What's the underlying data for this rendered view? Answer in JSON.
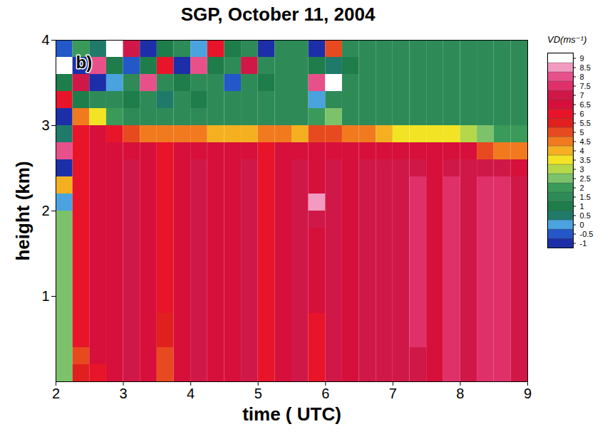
{
  "chart_data": {
    "type": "heatmap",
    "title": "SGP, October 11, 2004",
    "panel": "b)",
    "x_label": "time ( UTC)",
    "y_label": "height (km)",
    "xlim": [
      2,
      9
    ],
    "xticks": [
      2,
      3,
      4,
      5,
      6,
      7,
      8,
      9
    ],
    "ylim": [
      0,
      4
    ],
    "yticks": [
      1,
      2,
      3,
      4
    ],
    "x_bins": [
      2,
      2.25,
      2.5,
      2.75,
      3,
      3.25,
      3.5,
      3.75,
      4,
      4.25,
      4.5,
      4.75,
      5,
      5.25,
      5.5,
      5.75,
      6,
      6.25,
      6.5,
      6.75,
      7,
      7.25,
      7.5,
      7.75,
      8,
      8.25,
      8.5,
      8.75,
      9
    ],
    "y_bins": [
      0,
      0.2,
      0.4,
      0.6,
      0.8,
      1,
      1.2,
      1.4,
      1.6,
      1.8,
      2,
      2.2,
      2.4,
      2.6,
      2.8,
      3,
      3.2,
      3.4,
      3.6,
      3.8,
      4
    ],
    "values": [
      [
        2.5,
        2.5,
        2.5,
        2.5,
        2.5,
        2.5,
        2.5,
        2.5,
        2.5,
        2.5,
        0,
        4,
        -1,
        8,
        0.5,
        -1,
        6,
        1,
        9,
        -0.5
      ],
      [
        5.5,
        5,
        6,
        6,
        6,
        6,
        6,
        6,
        6,
        6,
        6,
        6,
        6,
        6,
        6,
        4.5,
        1,
        7,
        -1,
        2
      ],
      [
        6,
        6.5,
        6.5,
        6.5,
        6.5,
        6.5,
        6.5,
        6.5,
        6.5,
        6.5,
        6.5,
        6.5,
        6.5,
        6.5,
        6.5,
        3.5,
        1.5,
        -1,
        8,
        0.5
      ],
      [
        6.5,
        6.5,
        6.5,
        6.5,
        6.5,
        6.5,
        6.5,
        6.5,
        6.5,
        6.5,
        6.5,
        6.5,
        6.5,
        6.5,
        6,
        2,
        1.5,
        0,
        1,
        9
      ],
      [
        7,
        7,
        7,
        7,
        7,
        7,
        7,
        7,
        7,
        7,
        7,
        7,
        7,
        6.5,
        5,
        1.5,
        1,
        1.5,
        -0.5,
        7
      ],
      [
        6.5,
        6.5,
        6.5,
        6.5,
        6.5,
        6.5,
        6.5,
        6.5,
        6.5,
        6.5,
        6.5,
        6.5,
        6.5,
        6.5,
        4.5,
        1.5,
        1.5,
        8,
        1,
        -1
      ],
      [
        5,
        5,
        5.5,
        5.5,
        6,
        6,
        6,
        6,
        6,
        6,
        6,
        6,
        6,
        6,
        4.5,
        1.5,
        0.5,
        1.5,
        6,
        1
      ],
      [
        6.5,
        6.5,
        6.5,
        6.5,
        6.5,
        6.5,
        6.5,
        6.5,
        6.5,
        6.5,
        6.5,
        6.5,
        6.5,
        6.5,
        4.5,
        1.5,
        1.5,
        1,
        -1,
        1.5
      ],
      [
        7,
        7,
        7,
        7,
        7,
        7,
        7,
        7,
        7,
        7,
        7,
        7,
        7,
        6.5,
        4.5,
        1.5,
        1,
        1.5,
        8,
        0
      ],
      [
        6.5,
        6.5,
        6.5,
        6.5,
        6.5,
        6.5,
        6.5,
        6.5,
        6.5,
        6.5,
        6.5,
        6.5,
        6.5,
        6.5,
        4,
        1.5,
        1.5,
        1.5,
        1,
        6
      ],
      [
        6.5,
        6.5,
        6.5,
        6.5,
        6.5,
        6.5,
        6.5,
        6.5,
        6.5,
        6.5,
        6.5,
        6.5,
        6.5,
        6.5,
        4,
        1.5,
        1.5,
        -0.5,
        1.5,
        1
      ],
      [
        7,
        7,
        7,
        7,
        7,
        7,
        7,
        7,
        7,
        7,
        7,
        7,
        7,
        6.5,
        4,
        1.5,
        1.5,
        1.5,
        7,
        1.5
      ],
      [
        6,
        6,
        6,
        6,
        6,
        6,
        6,
        6,
        6,
        6,
        6,
        6,
        6,
        6,
        4.5,
        1.5,
        1.5,
        1,
        1.5,
        -1
      ],
      [
        6.5,
        6.5,
        6.5,
        6.5,
        6.5,
        6.5,
        6.5,
        6.5,
        6.5,
        6.5,
        6.5,
        6.5,
        6.5,
        6.5,
        4.5,
        1.5,
        1.5,
        1.5,
        1.5,
        1.5
      ],
      [
        7,
        7,
        7,
        7,
        7,
        7,
        7,
        7,
        7,
        7,
        7,
        7,
        7,
        6.5,
        4,
        1.5,
        1.5,
        1.5,
        1.5,
        1.5
      ],
      [
        6,
        6,
        6,
        6,
        6.5,
        6.5,
        6.5,
        6.5,
        6.5,
        7,
        8.5,
        6.5,
        6.5,
        6.5,
        5,
        2,
        0,
        8,
        1,
        -1
      ],
      [
        7,
        7,
        7,
        7,
        7,
        7,
        7,
        7,
        7,
        7,
        7,
        7,
        7,
        6.5,
        5,
        2.5,
        1.5,
        9,
        0.5,
        5
      ],
      [
        6.5,
        6.5,
        6.5,
        6.5,
        6.5,
        6.5,
        6.5,
        6.5,
        6.5,
        6.5,
        6.5,
        6.5,
        6.5,
        6.5,
        4.5,
        1.5,
        1.5,
        1.5,
        1,
        1.5
      ],
      [
        7,
        7,
        7,
        7,
        7,
        7,
        7,
        7,
        7,
        7,
        7,
        7,
        7,
        6.5,
        4.5,
        1.5,
        1.5,
        1.5,
        1.5,
        1.5
      ],
      [
        7,
        7,
        7,
        7,
        7,
        7,
        7,
        7,
        7,
        7,
        7,
        7,
        7,
        6.5,
        4,
        1.5,
        1.5,
        1.5,
        1.5,
        1.5
      ],
      [
        7,
        7,
        7,
        7,
        7,
        7,
        7,
        7,
        7,
        7,
        7,
        7,
        7,
        6.5,
        3.5,
        1.5,
        1.5,
        1.5,
        1.5,
        1.5
      ],
      [
        7,
        7,
        7.5,
        7.5,
        7.5,
        7.5,
        7.5,
        7.5,
        7.5,
        7.5,
        7.5,
        7.5,
        7,
        6.5,
        3.5,
        1.5,
        1.5,
        1.5,
        1.5,
        1.5
      ],
      [
        6.5,
        6.5,
        6.5,
        6.5,
        6.5,
        6.5,
        6.5,
        6.5,
        6.5,
        6.5,
        6.5,
        6.5,
        6.5,
        6.5,
        3.5,
        1.5,
        1.5,
        1.5,
        1.5,
        1.5
      ],
      [
        7.5,
        7.5,
        7.5,
        7.5,
        7.5,
        7.5,
        7.5,
        7.5,
        7.5,
        7.5,
        7.5,
        7.5,
        7,
        6.5,
        3.5,
        1.5,
        1.5,
        1.5,
        1.5,
        1.5
      ],
      [
        7,
        7,
        7,
        7,
        7,
        7,
        7,
        7,
        7,
        7,
        7,
        7,
        7,
        6.5,
        3,
        1.5,
        1.5,
        1.5,
        1.5,
        1.5
      ],
      [
        7.5,
        7.5,
        7.5,
        7.5,
        7.5,
        7.5,
        7.5,
        7.5,
        7.5,
        7.5,
        7.5,
        7.5,
        7,
        5,
        2.5,
        1.5,
        1.5,
        1.5,
        1.5,
        1.5
      ],
      [
        7.5,
        7.5,
        7.5,
        7.5,
        7.5,
        7.5,
        7.5,
        7.5,
        7.5,
        7.5,
        7.5,
        7.5,
        7,
        4.5,
        2,
        1.5,
        1.5,
        1.5,
        1.5,
        1.5
      ],
      [
        7,
        7,
        7,
        7,
        7,
        7,
        7,
        7,
        7,
        7,
        7,
        7,
        6.5,
        4.5,
        2,
        1.5,
        1.5,
        1.5,
        1.5,
        1.5
      ]
    ],
    "colorbar": {
      "label": "VD(ms⁻¹)",
      "range": [
        -1,
        9
      ],
      "ticks": [
        -1,
        -0.5,
        0,
        0.5,
        1,
        1.5,
        2,
        2.5,
        3,
        3.5,
        4,
        4.5,
        5,
        5.5,
        6,
        6.5,
        7,
        7.5,
        8,
        8.5,
        9
      ],
      "colors": [
        "#1c2fa8",
        "#2457c8",
        "#4aa3df",
        "#1f7a6a",
        "#1e7d4a",
        "#2e8b57",
        "#3a9a5a",
        "#7cc26a",
        "#b5d84a",
        "#f2e324",
        "#f5b022",
        "#f27a1e",
        "#e84a1f",
        "#e0201e",
        "#e8142a",
        "#d6103a",
        "#d01848",
        "#e0306a",
        "#e8508a",
        "#f29ac0",
        "#ffffff"
      ]
    }
  }
}
